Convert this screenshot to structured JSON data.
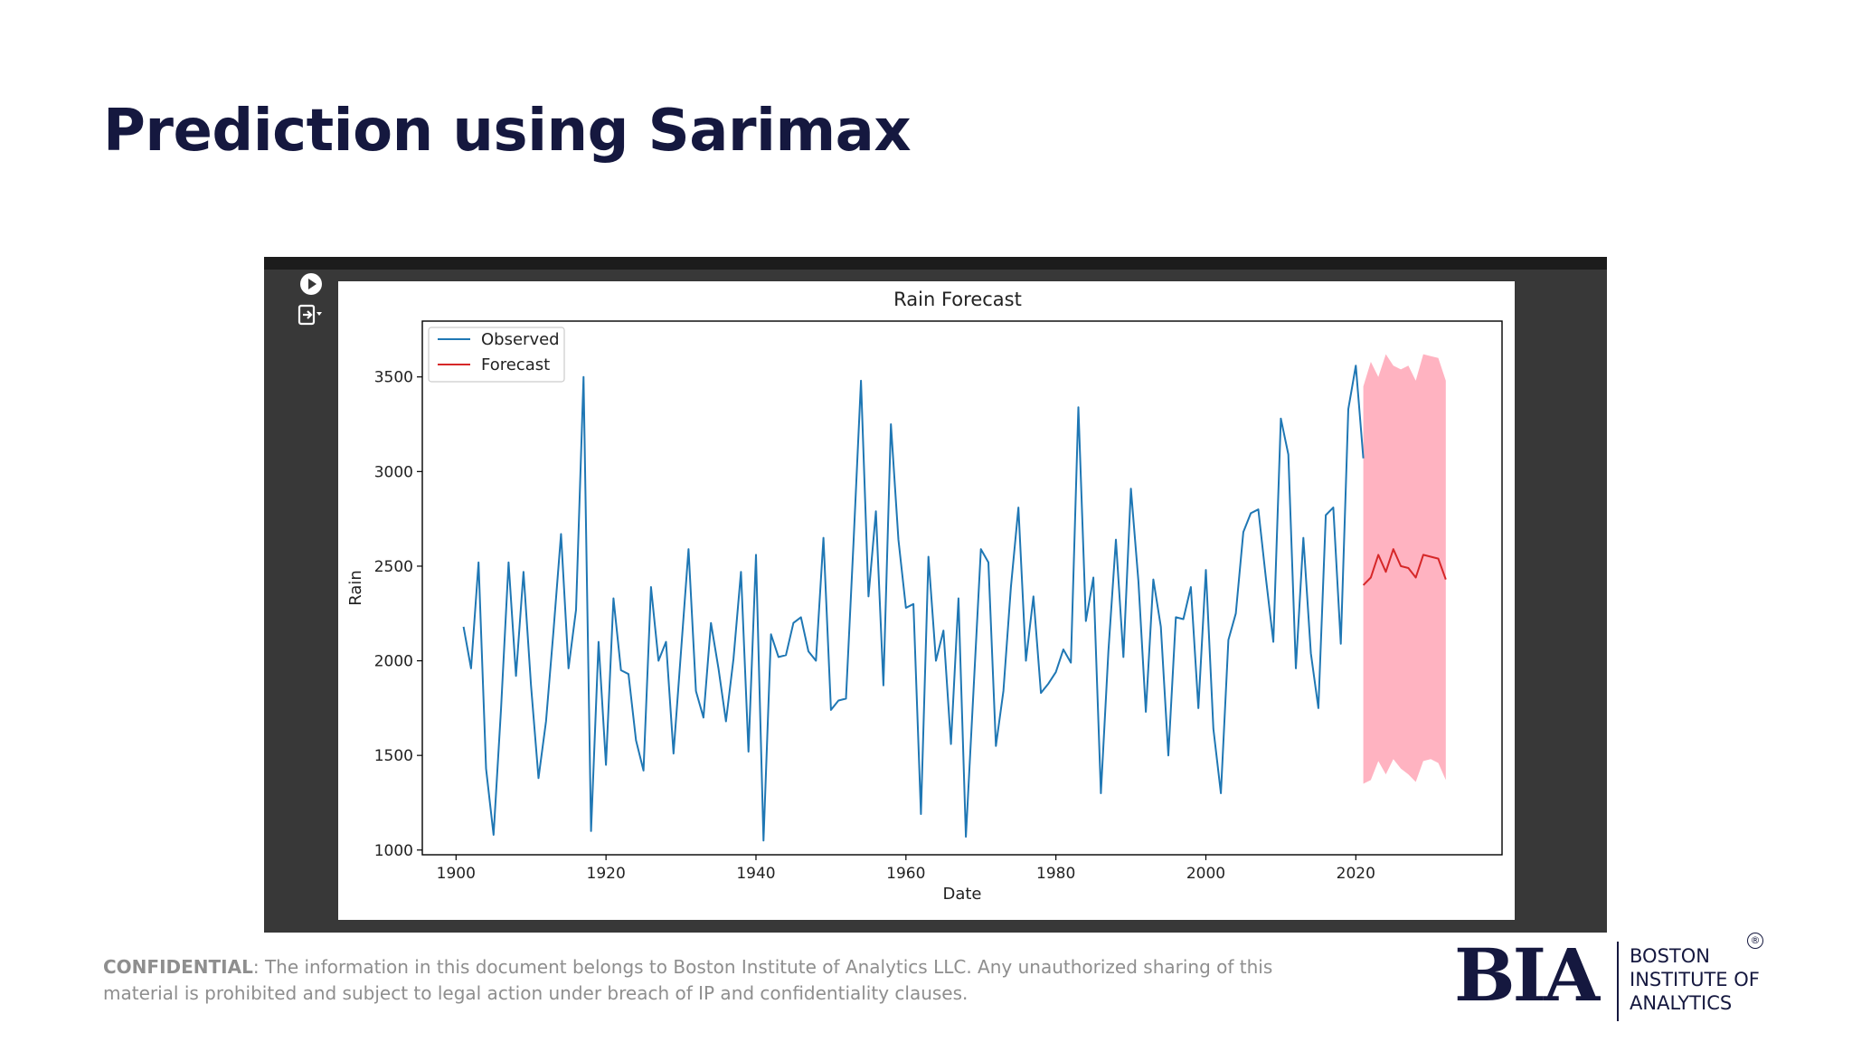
{
  "slide": {
    "title": "Prediction using Sarimax",
    "confidential_label": "CONFIDENTIAL",
    "confidential_text": ": The information in this document belongs to Boston Institute of Analytics LLC. Any unauthorized sharing of this material is prohibited and subject to legal action under breach of IP and confidentiality clauses."
  },
  "logo": {
    "mark": "BIA",
    "line1": "BOSTON",
    "line2": "INSTITUTE OF",
    "line3": "ANALYTICS",
    "registered": "®"
  },
  "colors": {
    "title": "#15183f",
    "observed": "#1f77b4",
    "forecast": "#d62728",
    "confidence": "#ffb3c1",
    "notebook_bg": "#383838"
  },
  "icons": [
    "run-cell-icon",
    "output-toggle-icon"
  ],
  "chart_data": {
    "type": "line",
    "title": "Rain Forecast",
    "xlabel": "Date",
    "ylabel": "Rain",
    "xlim": [
      1895.5,
      2039.5
    ],
    "ylim": [
      975,
      3795
    ],
    "xticks": [
      1900,
      1920,
      1940,
      1960,
      1980,
      2000,
      2020
    ],
    "yticks": [
      1000,
      1500,
      2000,
      2500,
      3000,
      3500
    ],
    "legend": {
      "position": "top-left",
      "entries": [
        "Observed",
        "Forecast"
      ]
    },
    "series": [
      {
        "name": "Observed",
        "x": [
          1901,
          1902,
          1903,
          1904,
          1905,
          1906,
          1907,
          1908,
          1909,
          1910,
          1911,
          1912,
          1913,
          1914,
          1915,
          1916,
          1917,
          1918,
          1919,
          1920,
          1921,
          1922,
          1923,
          1924,
          1925,
          1926,
          1927,
          1928,
          1929,
          1930,
          1931,
          1932,
          1933,
          1934,
          1935,
          1936,
          1937,
          1938,
          1939,
          1940,
          1941,
          1942,
          1943,
          1944,
          1945,
          1946,
          1947,
          1948,
          1949,
          1950,
          1951,
          1952,
          1953,
          1954,
          1955,
          1956,
          1957,
          1958,
          1959,
          1960,
          1961,
          1962,
          1963,
          1964,
          1965,
          1966,
          1967,
          1968,
          1969,
          1970,
          1971,
          1972,
          1973,
          1974,
          1975,
          1976,
          1977,
          1978,
          1979,
          1980,
          1981,
          1982,
          1983,
          1984,
          1985,
          1986,
          1987,
          1988,
          1989,
          1990,
          1991,
          1992,
          1993,
          1994,
          1995,
          1996,
          1997,
          1998,
          1999,
          2000,
          2001,
          2002,
          2003,
          2004,
          2005,
          2006,
          2007,
          2008,
          2009,
          2010,
          2011,
          2012,
          2013,
          2014,
          2015,
          2016,
          2017,
          2018,
          2019,
          2020,
          2021
        ],
        "values": [
          2180,
          1960,
          2520,
          1430,
          1080,
          1750,
          2520,
          1920,
          2470,
          1870,
          1380,
          1680,
          2160,
          2670,
          1960,
          2270,
          3500,
          1100,
          2100,
          1450,
          2330,
          1950,
          1930,
          1580,
          1420,
          2390,
          2000,
          2100,
          1510,
          2050,
          2590,
          1840,
          1700,
          2200,
          1960,
          1680,
          2010,
          2470,
          1520,
          2560,
          1050,
          2140,
          2020,
          2030,
          2200,
          2230,
          2050,
          2000,
          2650,
          1740,
          1790,
          1800,
          2620,
          3480,
          2340,
          2790,
          1870,
          3250,
          2640,
          2280,
          2300,
          1190,
          2550,
          2000,
          2160,
          1560,
          2330,
          1070,
          1830,
          2590,
          2520,
          1550,
          1840,
          2390,
          2810,
          2000,
          2340,
          1830,
          1880,
          1940,
          2060,
          1990,
          3340,
          2210,
          2440,
          1300,
          2050,
          2640,
          2020,
          2910,
          2420,
          1730,
          2430,
          2180,
          1500,
          2230,
          2220,
          2390,
          1750,
          2480,
          1640,
          1300,
          2110,
          2250,
          2680,
          2780,
          2800,
          2440,
          2100,
          3280,
          3090,
          1960,
          2650,
          2040,
          1750,
          2770,
          2810,
          2090,
          3330,
          3560,
          3070
        ]
      },
      {
        "name": "Forecast",
        "x": [
          2021,
          2022,
          2023,
          2024,
          2025,
          2026,
          2027,
          2028,
          2029,
          2030,
          2031,
          2032
        ],
        "values": [
          2400,
          2440,
          2560,
          2470,
          2590,
          2500,
          2490,
          2440,
          2560,
          2550,
          2540,
          2430
        ]
      }
    ],
    "confidence_interval": {
      "x": [
        2021,
        2022,
        2023,
        2024,
        2025,
        2026,
        2027,
        2028,
        2029,
        2030,
        2031,
        2032
      ],
      "upper": [
        3450,
        3580,
        3500,
        3620,
        3560,
        3540,
        3560,
        3480,
        3620,
        3610,
        3600,
        3480
      ],
      "lower": [
        1350,
        1370,
        1470,
        1400,
        1480,
        1430,
        1400,
        1360,
        1470,
        1480,
        1460,
        1370
      ]
    }
  }
}
